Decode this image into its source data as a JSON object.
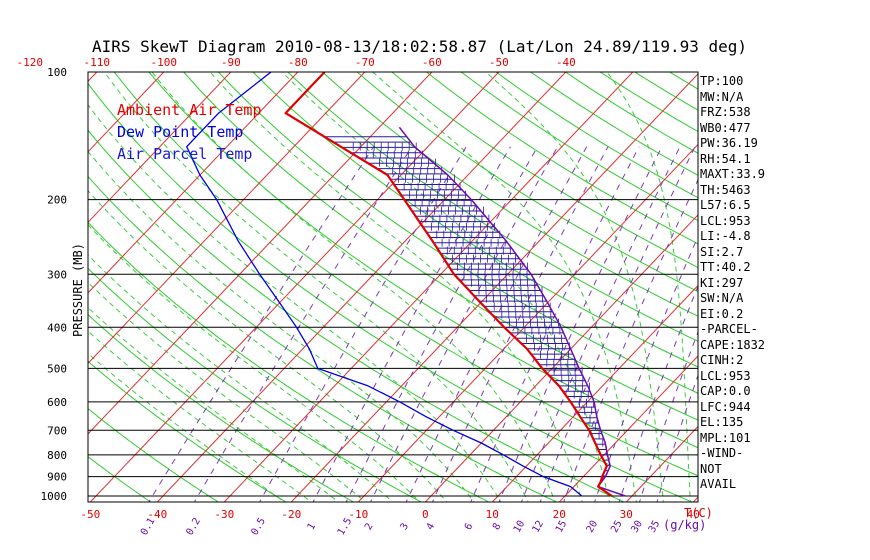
{
  "chart_data": {
    "type": "line",
    "title": "AIRS SkewT Diagram 2010-08-13/18:02:58.87 (Lat/Lon 24.89/119.93 deg)",
    "ylabel": "PRESSURE (MB)",
    "xlabel_right": "T(C)",
    "mixing_ratio_unit": "(g/kg)",
    "pressure_ticks": [
      100,
      200,
      300,
      400,
      500,
      600,
      700,
      800,
      900,
      1000
    ],
    "temp_ticks_top": [
      -120,
      -110,
      -100,
      -90,
      -80,
      -70,
      -60,
      -50,
      -40
    ],
    "temp_ticks_bottom": [
      -50,
      -40,
      -30,
      -20,
      -10,
      0,
      10,
      20,
      30,
      40
    ],
    "mixing_ratio_labels": [
      "0.1",
      "0.2",
      "0.5",
      "1",
      "1.5",
      "2",
      "3",
      "4",
      "6",
      "8",
      "10",
      "12",
      "15",
      "20",
      "25",
      "30",
      "35"
    ],
    "legend": [
      {
        "label": "Ambient Air Temp",
        "color": "#e00000"
      },
      {
        "label": "Dew Point Temp",
        "color": "#0000e0"
      },
      {
        "label": "Air Parcel Temp",
        "color": "#6a0dad"
      }
    ],
    "series": [
      {
        "name": "Ambient Air Temp",
        "color": "#e00000",
        "pressure": [
          1000,
          950,
          925,
          900,
          850,
          800,
          750,
          700,
          650,
          600,
          550,
          500,
          450,
          400,
          350,
          300,
          250,
          200,
          175,
          150,
          125,
          100
        ],
        "temp_c": [
          27,
          23.6,
          23.3,
          22.8,
          22,
          19.5,
          17,
          14.3,
          11,
          7.5,
          3.5,
          -1.5,
          -6.5,
          -13,
          -20,
          -28,
          -36,
          -46,
          -52,
          -63,
          -76,
          -76
        ]
      },
      {
        "name": "Dew Point Temp",
        "color": "#0000e0",
        "pressure": [
          1000,
          950,
          900,
          850,
          800,
          750,
          700,
          650,
          600,
          550,
          500,
          450,
          400,
          350,
          300,
          250,
          200,
          175,
          150,
          125,
          100
        ],
        "temp_c": [
          22.5,
          19.5,
          14,
          9.5,
          5,
          0,
          -6,
          -12,
          -18,
          -25,
          -35,
          -39,
          -44,
          -50,
          -57,
          -65,
          -74,
          -80,
          -86,
          -86,
          -84
        ]
      },
      {
        "name": "Air Parcel Temp",
        "color": "#6a0dad",
        "pressure": [
          1000,
          950,
          900,
          850,
          800,
          750,
          700,
          650,
          600,
          550,
          500,
          450,
          400,
          350,
          300,
          250,
          200,
          175,
          150,
          135
        ],
        "temp_c": [
          29,
          23.6,
          23.3,
          22.5,
          20.5,
          18.5,
          16,
          13.5,
          11,
          7.8,
          4,
          0,
          -4.5,
          -10,
          -16.5,
          -25,
          -36,
          -43,
          -52,
          -57
        ]
      }
    ]
  },
  "legend_labels": [
    "Ambient Air Temp",
    "Dew Point Temp",
    "Air Parcel Temp"
  ],
  "indices": [
    "TP:100",
    "MW:N/A",
    "FRZ:538",
    "WB0:477",
    "PW:36.19",
    "RH:54.1",
    "MAXT:33.9",
    "TH:5463",
    "L57:6.5",
    "LCL:953",
    "LI:-4.8",
    "SI:2.7",
    "TT:40.2",
    "KI:297",
    "SW:N/A",
    "EI:0.2",
    "-PARCEL-",
    "CAPE:1832",
    "CINH:2",
    "LCL:953",
    "CAP:0.0",
    "LFC:944",
    "EL:135",
    "MPL:101",
    "-WIND-",
    "NOT",
    "AVAIL"
  ]
}
